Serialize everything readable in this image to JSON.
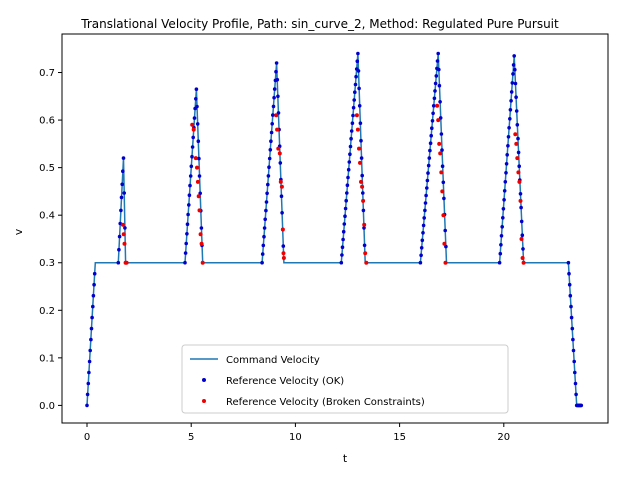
{
  "chart_data": {
    "type": "line",
    "title": "Translational Velocity Profile, Path: sin_curve_2, Method: Regulated Pure Pursuit",
    "xlabel": "t",
    "ylabel": "v",
    "xlim": [
      -1.2,
      25.0
    ],
    "ylim": [
      -0.037,
      0.781
    ],
    "xticks": [
      0,
      5,
      10,
      15,
      20
    ],
    "yticks": [
      0.0,
      0.1,
      0.2,
      0.3,
      0.4,
      0.5,
      0.6,
      0.7
    ],
    "ytick_labels": [
      "0.0",
      "0.1",
      "0.2",
      "0.3",
      "0.4",
      "0.5",
      "0.6",
      "0.7"
    ],
    "grid": false,
    "legend_position": "bottom-center",
    "colors": {
      "command": "#1f77b4",
      "ok": "#0000cc",
      "broken": "#ee0000"
    },
    "command_series": {
      "name": "Command Velocity",
      "x": [
        0.0,
        0.4,
        1.5,
        1.75,
        1.85,
        4.7,
        5.25,
        5.55,
        8.4,
        9.1,
        9.45,
        12.2,
        13.0,
        13.35,
        16.0,
        16.85,
        17.25,
        19.8,
        20.5,
        20.95,
        23.1,
        23.5,
        23.6,
        23.75
      ],
      "y": [
        0.0,
        0.3,
        0.3,
        0.52,
        0.3,
        0.3,
        0.665,
        0.3,
        0.3,
        0.72,
        0.3,
        0.3,
        0.74,
        0.3,
        0.3,
        0.74,
        0.3,
        0.3,
        0.735,
        0.3,
        0.3,
        0.0,
        0.0,
        0.0
      ]
    },
    "reference_ok": {
      "name": "Reference Velocity (OK)"
    },
    "reference_broken": {
      "name": "Reference Velocity (Broken Constraints)",
      "points": [
        [
          1.72,
          0.38
        ],
        [
          1.76,
          0.36
        ],
        [
          1.8,
          0.34
        ],
        [
          1.85,
          0.3
        ],
        [
          1.9,
          0.3
        ],
        [
          5.05,
          0.59
        ],
        [
          5.12,
          0.58
        ],
        [
          5.22,
          0.52
        ],
        [
          5.28,
          0.5
        ],
        [
          5.32,
          0.47
        ],
        [
          5.36,
          0.44
        ],
        [
          5.4,
          0.41
        ],
        [
          5.45,
          0.36
        ],
        [
          5.5,
          0.34
        ],
        [
          5.55,
          0.3
        ],
        [
          9.08,
          0.61
        ],
        [
          9.12,
          0.58
        ],
        [
          9.18,
          0.54
        ],
        [
          9.25,
          0.53
        ],
        [
          9.3,
          0.47
        ],
        [
          9.35,
          0.46
        ],
        [
          9.4,
          0.37
        ],
        [
          9.43,
          0.32
        ],
        [
          9.45,
          0.31
        ],
        [
          12.95,
          0.61
        ],
        [
          13.0,
          0.58
        ],
        [
          13.05,
          0.54
        ],
        [
          13.1,
          0.51
        ],
        [
          13.15,
          0.47
        ],
        [
          13.2,
          0.46
        ],
        [
          13.25,
          0.43
        ],
        [
          13.3,
          0.38
        ],
        [
          13.35,
          0.32
        ],
        [
          13.4,
          0.3
        ],
        [
          16.8,
          0.63
        ],
        [
          16.85,
          0.6
        ],
        [
          16.9,
          0.55
        ],
        [
          16.95,
          0.53
        ],
        [
          17.0,
          0.49
        ],
        [
          17.05,
          0.45
        ],
        [
          17.1,
          0.4
        ],
        [
          17.15,
          0.34
        ],
        [
          17.2,
          0.3
        ],
        [
          20.55,
          0.57
        ],
        [
          20.6,
          0.55
        ],
        [
          20.65,
          0.52
        ],
        [
          20.7,
          0.49
        ],
        [
          20.75,
          0.47
        ],
        [
          20.8,
          0.43
        ],
        [
          20.85,
          0.35
        ],
        [
          20.9,
          0.31
        ],
        [
          20.95,
          0.3
        ]
      ]
    }
  }
}
